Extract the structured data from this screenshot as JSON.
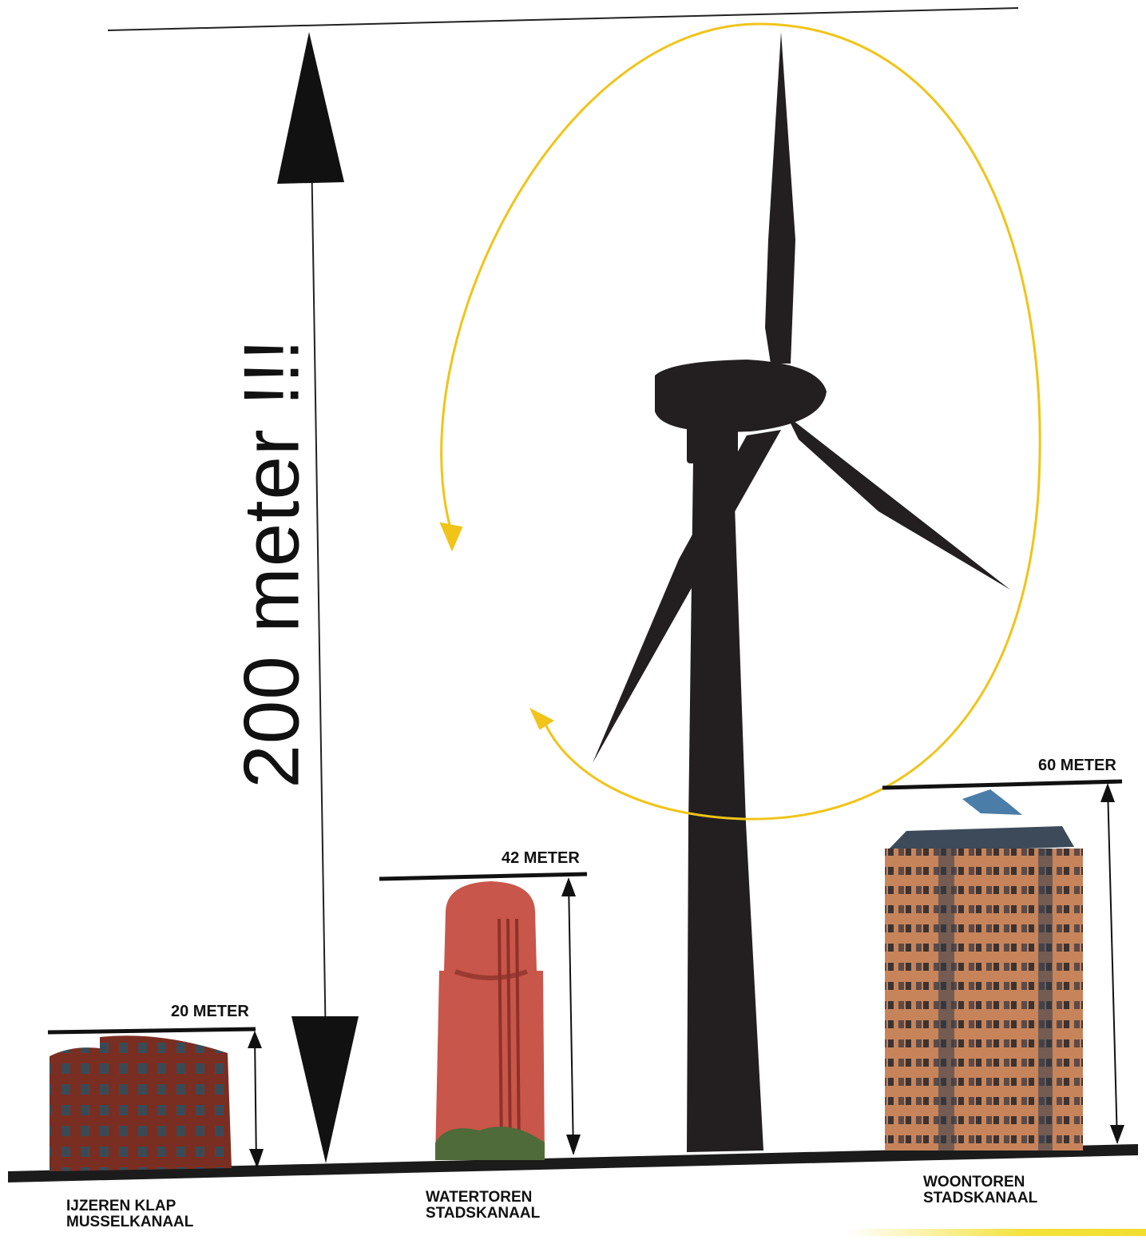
{
  "headline": "200 meter !!!",
  "buildings": [
    {
      "height_label": "20 METER",
      "name_line1": "IJZEREN KLAP",
      "name_line2": "MUSSELKANAAL"
    },
    {
      "height_label": "42 METER",
      "name_line1": "WATERTOREN",
      "name_line2": "STADSKANAAL"
    },
    {
      "height_label": "60 METER",
      "name_line1": "WOONTOREN",
      "name_line2": "STADSKANAAL"
    }
  ],
  "colors": {
    "turbine": "#231f20",
    "rotation_arrow": "#f0c419",
    "brick_dark": "#7a2e22",
    "brick_tower": "#c9564a",
    "brick_highrise": "#c7845a"
  },
  "icons": [
    "wind-turbine-icon",
    "rotation-arrow-icon",
    "apartment-building-icon",
    "water-tower-icon",
    "highrise-building-icon"
  ]
}
